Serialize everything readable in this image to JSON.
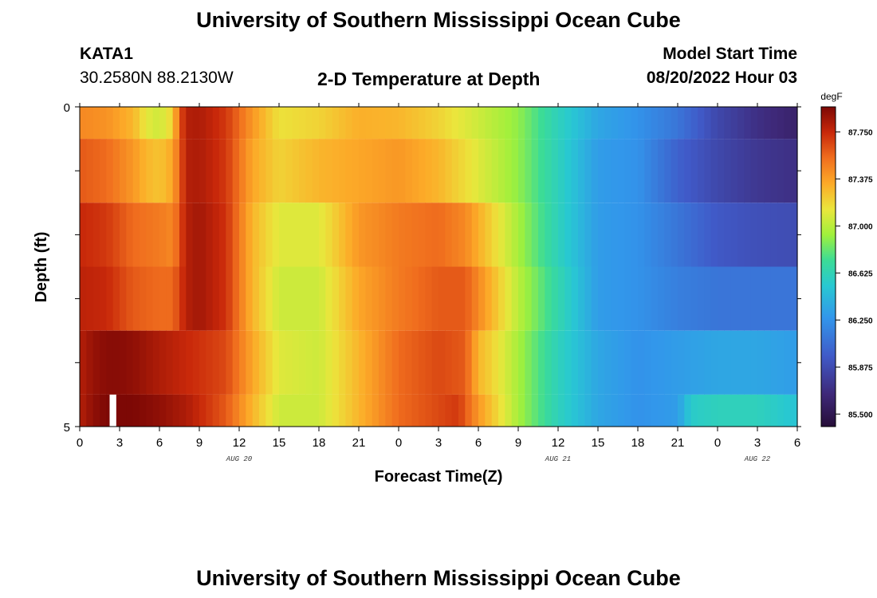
{
  "header": {
    "title": "University of Southern Mississippi Ocean Cube",
    "station": "KATA1",
    "coords": "30.2580N  88.2130W",
    "chart_title": "2-D Temperature at Depth",
    "model_start_label": "Model Start Time",
    "model_start_value": "08/20/2022 Hour 03"
  },
  "footer": {
    "title": "University of Southern Mississippi Ocean Cube"
  },
  "chart_data": {
    "type": "heatmap",
    "title": "2-D Temperature at Depth",
    "xlabel": "Forecast Time(Z)",
    "ylabel": "Depth (ft)",
    "colorbar_unit": "degF",
    "colorbar_ticks": [
      "87.750",
      "87.375",
      "87.000",
      "86.625",
      "86.250",
      "85.875",
      "85.500"
    ],
    "colorbar_tick_values": [
      87.75,
      87.375,
      87.0,
      86.625,
      86.25,
      85.875,
      85.5
    ],
    "color_range": [
      85.4,
      87.95
    ],
    "x_tick_labels": [
      "0",
      "3",
      "6",
      "9",
      "12",
      "15",
      "18",
      "21",
      "0",
      "3",
      "6",
      "9",
      "12",
      "15",
      "18",
      "21",
      "0",
      "3",
      "6"
    ],
    "x_range_hours": [
      0,
      54
    ],
    "date_labels": [
      {
        "label": "AUG 20",
        "hour": 12
      },
      {
        "label": "AUG 21",
        "hour": 36
      },
      {
        "label": "AUG 22",
        "hour": 51
      }
    ],
    "y_tick_labels": [
      "0",
      "5"
    ],
    "ylim": [
      0,
      5
    ],
    "depth_layers": 5,
    "layer_profiles": [
      {
        "depth_row": 0,
        "hours": [
          0,
          2,
          4,
          5,
          6,
          7,
          7.5,
          8,
          9,
          11,
          13,
          15,
          18,
          21,
          24,
          27,
          30,
          33,
          36,
          39,
          42,
          45,
          48,
          51,
          54
        ],
        "values": [
          87.45,
          87.42,
          87.3,
          87.12,
          87.05,
          87.2,
          87.6,
          87.8,
          87.82,
          87.7,
          87.4,
          87.15,
          87.2,
          87.32,
          87.3,
          87.2,
          87.05,
          86.9,
          86.6,
          86.35,
          86.25,
          86.1,
          85.85,
          85.7,
          85.6
        ]
      },
      {
        "depth_row": 1,
        "hours": [
          0,
          2,
          4,
          5,
          6,
          7,
          8,
          9,
          11,
          13,
          15,
          18,
          21,
          24,
          27,
          30,
          33,
          36,
          39,
          42,
          45,
          48,
          51,
          54
        ],
        "values": [
          87.6,
          87.55,
          87.4,
          87.3,
          87.25,
          87.35,
          87.8,
          87.82,
          87.7,
          87.35,
          87.2,
          87.3,
          87.35,
          87.4,
          87.3,
          87.1,
          86.9,
          86.6,
          86.3,
          86.25,
          86.0,
          85.85,
          85.75,
          85.7
        ]
      },
      {
        "depth_row": 2,
        "hours": [
          0,
          2,
          4,
          6,
          7,
          8,
          9,
          11,
          13,
          15,
          18,
          21,
          24,
          27,
          29,
          31,
          33,
          36,
          39,
          42,
          45,
          48,
          51,
          54
        ],
        "values": [
          87.75,
          87.7,
          87.55,
          87.5,
          87.45,
          87.8,
          87.85,
          87.72,
          87.3,
          87.1,
          87.1,
          87.4,
          87.5,
          87.55,
          87.45,
          87.2,
          86.95,
          86.6,
          86.3,
          86.25,
          86.1,
          85.95,
          85.9,
          85.88
        ]
      },
      {
        "depth_row": 3,
        "hours": [
          0,
          2,
          4,
          6,
          7,
          8,
          9,
          11,
          13,
          15,
          18,
          21,
          24,
          27,
          29,
          31,
          33,
          36,
          39,
          42,
          45,
          48,
          51,
          54
        ],
        "values": [
          87.78,
          87.75,
          87.6,
          87.55,
          87.55,
          87.8,
          87.85,
          87.72,
          87.3,
          87.05,
          87.05,
          87.35,
          87.5,
          87.6,
          87.6,
          87.3,
          87.0,
          86.65,
          86.3,
          86.25,
          86.15,
          86.1,
          86.1,
          86.1
        ]
      },
      {
        "depth_row": 4,
        "hours": [
          0,
          1,
          2,
          3,
          4,
          6,
          8,
          9,
          11,
          13,
          15,
          18,
          21,
          24,
          27,
          29,
          30,
          31,
          33,
          36,
          39,
          42,
          45,
          48,
          51,
          54
        ],
        "values": [
          87.8,
          87.88,
          87.92,
          87.92,
          87.9,
          87.82,
          87.75,
          87.72,
          87.65,
          87.35,
          87.1,
          87.05,
          87.3,
          87.55,
          87.65,
          87.6,
          87.3,
          87.2,
          86.95,
          86.6,
          86.35,
          86.25,
          86.3,
          86.35,
          86.35,
          86.3
        ]
      },
      {
        "depth_row": 5,
        "hours": [
          0,
          1,
          2,
          3,
          4,
          6,
          8,
          9,
          11,
          13,
          15,
          18,
          21,
          24,
          27,
          28.5,
          30,
          31,
          33,
          36,
          39,
          42,
          45,
          46,
          48,
          51,
          54
        ],
        "values": [
          87.8,
          87.9,
          87.95,
          87.95,
          87.95,
          87.9,
          87.82,
          87.75,
          87.6,
          87.3,
          87.05,
          87.05,
          87.3,
          87.55,
          87.65,
          87.7,
          87.4,
          87.25,
          86.95,
          86.6,
          86.35,
          86.25,
          86.3,
          86.55,
          86.6,
          86.6,
          86.5
        ]
      }
    ],
    "missing_cell": {
      "depth_row": 5,
      "hour_start": 2.25,
      "hour_end": 2.75
    }
  }
}
